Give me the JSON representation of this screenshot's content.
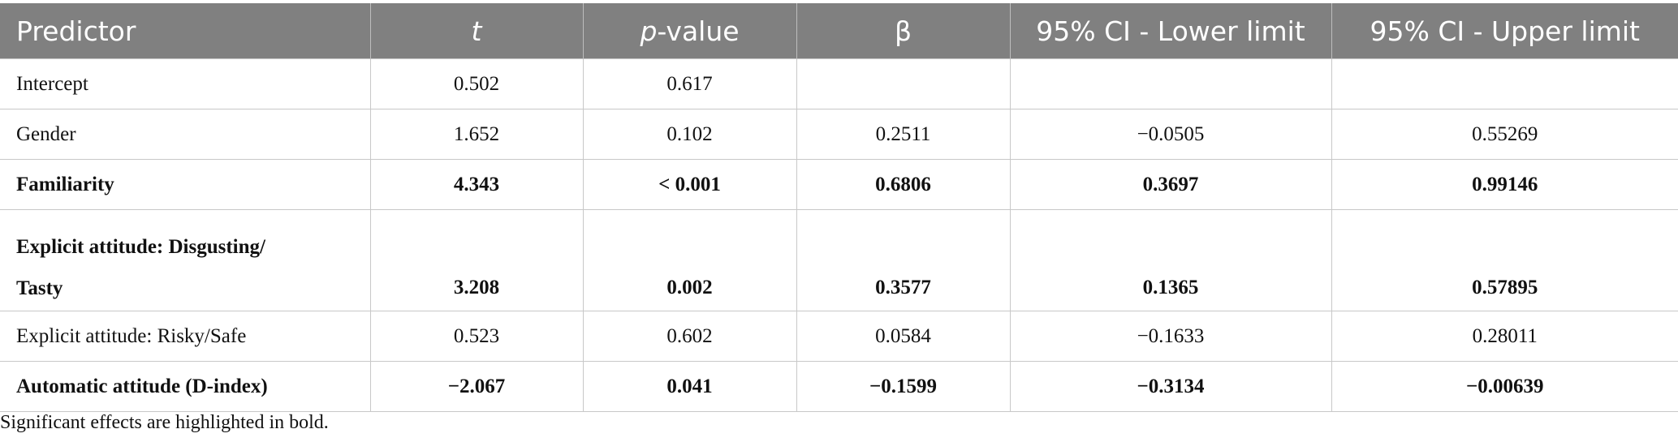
{
  "table": {
    "header": [
      "Predictor",
      "t",
      [
        "p",
        "-value"
      ],
      "β",
      "95% CI - Lower limit",
      "95% CI - Upper limit"
    ],
    "rows": [
      {
        "bold": false,
        "cells": [
          "Intercept",
          "0.502",
          "0.617",
          null,
          null,
          null
        ]
      },
      {
        "bold": false,
        "cells": [
          "Gender",
          "1.652",
          "0.102",
          "0.2511",
          "−0.0505",
          "0.55269"
        ]
      },
      {
        "bold": true,
        "cells": [
          "Familiarity",
          "4.343",
          "< 0.001",
          "0.6806",
          "0.3697",
          "0.99146"
        ]
      },
      {
        "bold": true,
        "cells": [
          "Explicit attitude: Disgusting/\nTasty",
          "3.208",
          "0.002",
          "0.3577",
          "0.1365",
          "0.57895"
        ]
      },
      {
        "bold": false,
        "cells": [
          "Explicit attitude: Risky/Safe",
          "0.523",
          "0.602",
          "0.0584",
          "−0.1633",
          "0.28011"
        ]
      },
      {
        "bold": true,
        "cells": [
          "Automatic attitude (D-index)",
          "−2.067",
          "0.041",
          "−0.1599",
          "−0.3134",
          "−0.00639"
        ]
      }
    ],
    "footnote": "Significant effects are highlighted in bold."
  }
}
